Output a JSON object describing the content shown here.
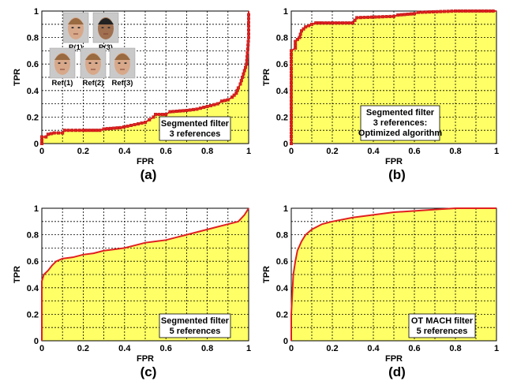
{
  "chart_data": [
    {
      "panel": "(a)",
      "type": "line",
      "xlabel": "FPR",
      "ylabel": "TPR",
      "xlim": [
        0,
        1
      ],
      "ylim": [
        0,
        1
      ],
      "xticks": [
        "0",
        "0.2",
        "0.4",
        "0.6",
        "0.8",
        "1"
      ],
      "yticks": [
        "0",
        "0.2",
        "0.4",
        "0.6",
        "0.8",
        "1"
      ],
      "grid": true,
      "fill": true,
      "marker": "square",
      "annotation": [
        "Segmented filter",
        "3 references"
      ],
      "inset_labels": [
        "P(1)",
        "P(3)",
        "Ref(1)",
        "Ref(2)",
        "Ref(3)"
      ],
      "x": [
        0,
        0,
        0.02,
        0.03,
        0.06,
        0.1,
        0.11,
        0.2,
        0.28,
        0.3,
        0.38,
        0.5,
        0.52,
        0.54,
        0.55,
        0.6,
        0.62,
        0.7,
        0.75,
        0.8,
        0.85,
        0.87,
        0.9,
        0.92,
        0.94,
        0.95,
        0.96,
        0.97,
        0.98,
        0.99,
        1.0,
        1.0
      ],
      "y": [
        0,
        0.05,
        0.05,
        0.07,
        0.08,
        0.08,
        0.1,
        0.1,
        0.1,
        0.11,
        0.12,
        0.16,
        0.18,
        0.2,
        0.22,
        0.22,
        0.24,
        0.25,
        0.26,
        0.28,
        0.3,
        0.32,
        0.33,
        0.35,
        0.38,
        0.42,
        0.45,
        0.5,
        0.55,
        0.6,
        0.8,
        1.0
      ]
    },
    {
      "panel": "(b)",
      "type": "line",
      "xlabel": "FPR",
      "ylabel": "TPR",
      "xlim": [
        0,
        1
      ],
      "ylim": [
        0,
        1
      ],
      "xticks": [
        "0",
        "0.2",
        "0.4",
        "0.6",
        "0.8",
        "1"
      ],
      "yticks": [
        "0",
        "0.2",
        "0.4",
        "0.6",
        "0.8",
        "1"
      ],
      "grid": true,
      "fill": true,
      "marker": "square",
      "annotation": [
        "Segmented filter",
        "3 references:",
        "Optimized algorithm"
      ],
      "x": [
        0,
        0,
        0.02,
        0.02,
        0.04,
        0.05,
        0.07,
        0.1,
        0.12,
        0.15,
        0.3,
        0.32,
        0.5,
        0.52,
        0.6,
        0.62,
        0.8,
        1.0
      ],
      "y": [
        0,
        0.7,
        0.72,
        0.77,
        0.8,
        0.85,
        0.88,
        0.9,
        0.91,
        0.91,
        0.91,
        0.95,
        0.96,
        0.97,
        0.98,
        0.99,
        1.0,
        1.0
      ]
    },
    {
      "panel": "(c)",
      "type": "line",
      "xlabel": "FPR",
      "ylabel": "TPR",
      "xlim": [
        0,
        1
      ],
      "ylim": [
        0,
        1
      ],
      "xticks": [
        "0",
        "0.2",
        "0.4",
        "0.6",
        "0.8",
        "1"
      ],
      "yticks": [
        "0",
        "0.2",
        "0.4",
        "0.6",
        "0.8",
        "1"
      ],
      "grid": true,
      "fill": true,
      "marker": "none",
      "annotation": [
        "Segmented filter",
        "5 references"
      ],
      "x": [
        0,
        0,
        0.01,
        0.03,
        0.05,
        0.07,
        0.1,
        0.15,
        0.2,
        0.25,
        0.3,
        0.35,
        0.4,
        0.45,
        0.5,
        0.55,
        0.6,
        0.65,
        0.7,
        0.75,
        0.8,
        0.85,
        0.9,
        0.95,
        0.98,
        1.0
      ],
      "y": [
        0,
        0.45,
        0.5,
        0.53,
        0.57,
        0.6,
        0.62,
        0.63,
        0.65,
        0.66,
        0.68,
        0.69,
        0.7,
        0.72,
        0.74,
        0.75,
        0.76,
        0.78,
        0.8,
        0.82,
        0.84,
        0.86,
        0.88,
        0.9,
        0.95,
        1.0
      ]
    },
    {
      "panel": "(d)",
      "type": "line",
      "xlabel": "FPR",
      "ylabel": "TPR",
      "xlim": [
        0,
        1
      ],
      "ylim": [
        0,
        1
      ],
      "xticks": [
        "0",
        "0.2",
        "0.4",
        "0.6",
        "0.8",
        "1"
      ],
      "yticks": [
        "0",
        "0.2",
        "0.4",
        "0.6",
        "0.8",
        "1"
      ],
      "grid": true,
      "fill": true,
      "marker": "none",
      "annotation": [
        "OT MACH filter",
        "5 references"
      ],
      "x": [
        0,
        0,
        0.005,
        0.01,
        0.02,
        0.03,
        0.05,
        0.07,
        0.1,
        0.15,
        0.2,
        0.3,
        0.4,
        0.5,
        0.6,
        0.7,
        0.8,
        0.9,
        1.0
      ],
      "y": [
        0,
        0.2,
        0.35,
        0.5,
        0.6,
        0.68,
        0.75,
        0.8,
        0.84,
        0.88,
        0.9,
        0.93,
        0.95,
        0.97,
        0.98,
        0.99,
        1.0,
        1.0,
        1.0
      ]
    }
  ],
  "colors": {
    "fill": "#ffff66",
    "line": "#e02020",
    "marker_edge": "#b01010",
    "grid": "#000000",
    "text": "#000000"
  }
}
